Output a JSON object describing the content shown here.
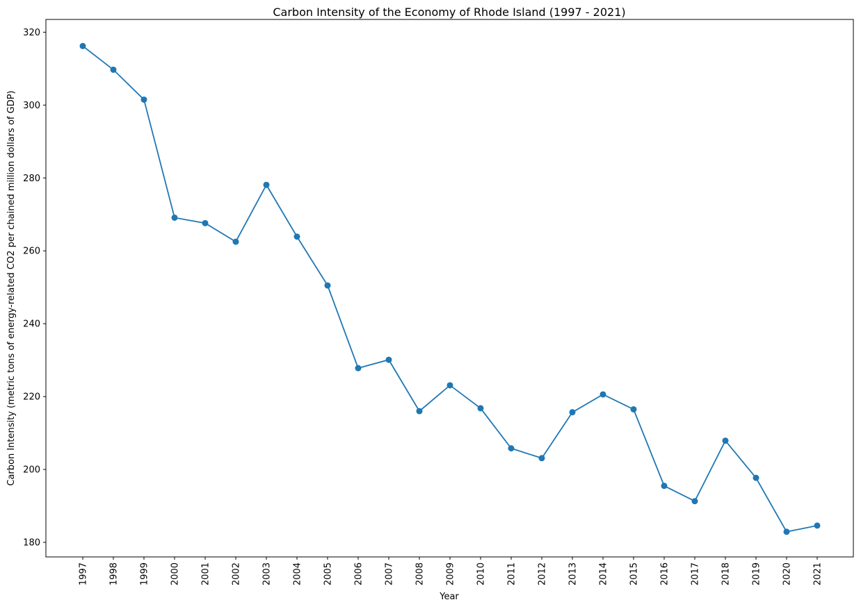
{
  "chart_data": {
    "type": "line",
    "title": "Carbon Intensity of the Economy of Rhode Island (1997 - 2021)",
    "xlabel": "Year",
    "ylabel": "Carbon Intensity (metric tons of energy-related CO2 per chained million dollars of GDP)",
    "categories": [
      "1997",
      "1998",
      "1999",
      "2000",
      "2001",
      "2002",
      "2003",
      "2004",
      "2005",
      "2006",
      "2007",
      "2008",
      "2009",
      "2010",
      "2011",
      "2012",
      "2013",
      "2014",
      "2015",
      "2016",
      "2017",
      "2018",
      "2019",
      "2020",
      "2021"
    ],
    "series": [
      {
        "values": [
          316.2,
          309.7,
          301.5,
          269.1,
          267.6,
          262.5,
          278.1,
          263.9,
          250.5,
          227.8,
          230.1,
          216.0,
          223.1,
          216.8,
          205.8,
          203.1,
          215.7,
          220.6,
          216.5,
          195.5,
          191.3,
          207.9,
          197.7,
          182.9,
          184.6
        ]
      }
    ],
    "ylim": [
      176.0,
      323.5
    ],
    "yticks": [
      180,
      200,
      220,
      240,
      260,
      280,
      300,
      320
    ],
    "grid": false,
    "color": "#1f77b4"
  }
}
